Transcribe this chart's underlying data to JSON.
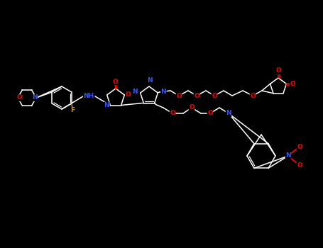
{
  "background_color": "#000000",
  "bond_color": "#FFFFFF",
  "atom_colors": {
    "N": "#3355FF",
    "O": "#FF0000",
    "F": "#CC9900",
    "C": "#FFFFFF"
  },
  "lw": 1.1,
  "fs": 6.5
}
